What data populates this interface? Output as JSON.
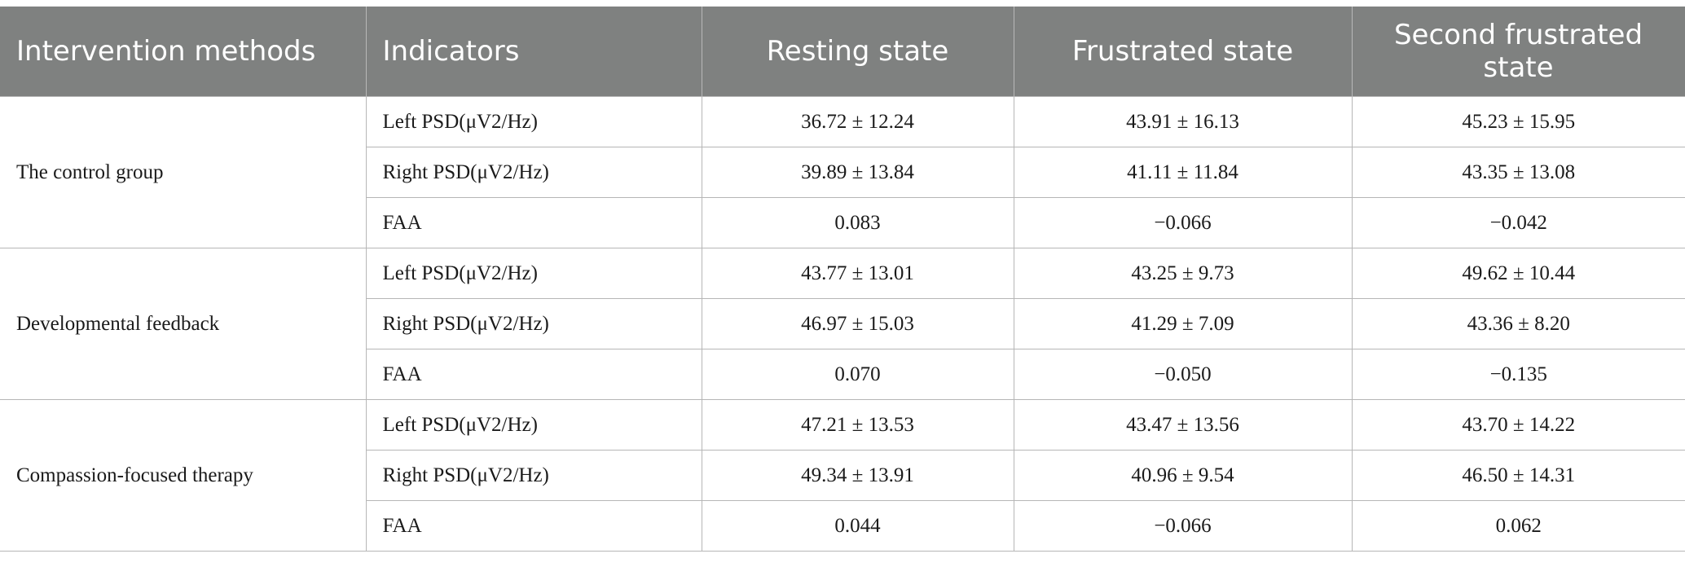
{
  "headers": [
    "Intervention methods",
    "Indicators",
    "Resting state",
    "Frustrated state",
    "Second frustrated state"
  ],
  "groups": [
    {
      "name": "The control group",
      "rows": [
        {
          "indicator": "Left PSD(μV2/Hz)",
          "resting": "36.72 ± 12.24",
          "frustrated": "43.91 ± 16.13",
          "second": "45.23 ± 15.95"
        },
        {
          "indicator": "Right PSD(μV2/Hz)",
          "resting": "39.89 ± 13.84",
          "frustrated": "41.11 ± 11.84",
          "second": "43.35 ± 13.08"
        },
        {
          "indicator": "FAA",
          "resting": "0.083",
          "frustrated": "−0.066",
          "second": "−0.042"
        }
      ]
    },
    {
      "name": "Developmental feedback",
      "rows": [
        {
          "indicator": "Left PSD(μV2/Hz)",
          "resting": "43.77 ± 13.01",
          "frustrated": "43.25 ± 9.73",
          "second": "49.62 ± 10.44"
        },
        {
          "indicator": "Right PSD(μV2/Hz)",
          "resting": "46.97 ± 15.03",
          "frustrated": "41.29 ± 7.09",
          "second": "43.36 ± 8.20"
        },
        {
          "indicator": "FAA",
          "resting": "0.070",
          "frustrated": "−0.050",
          "second": "−0.135"
        }
      ]
    },
    {
      "name": "Compassion-focused therapy",
      "rows": [
        {
          "indicator": "Left PSD(μV2/Hz)",
          "resting": "47.21 ± 13.53",
          "frustrated": "43.47 ± 13.56",
          "second": "43.70 ± 14.22"
        },
        {
          "indicator": "Right PSD(μV2/Hz)",
          "resting": "49.34 ± 13.91",
          "frustrated": "40.96 ± 9.54",
          "second": "46.50 ± 14.31"
        },
        {
          "indicator": "FAA",
          "resting": "0.044",
          "frustrated": "−0.066",
          "second": "0.062"
        }
      ]
    }
  ]
}
